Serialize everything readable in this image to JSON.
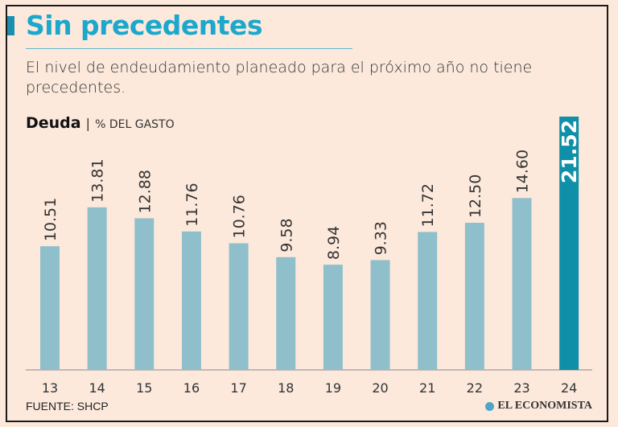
{
  "title": "Sin precedentes",
  "subtitle": "El nivel de endeudamiento planeado para el próximo año no tiene precedentes.",
  "unit_label": "Deuda",
  "unit_separator": "|",
  "unit_detail": "% DEL GASTO",
  "source": "FUENTE: SHCP",
  "logo_text": "EL ECONOMISTA",
  "colors": {
    "bar": "#8fbfca",
    "highlight": "#0f8fa8",
    "title": "#1ba8cc",
    "background": "#fce9dc"
  },
  "chart_data": {
    "type": "bar",
    "title": "Deuda",
    "ylabel": "% DEL GASTO",
    "categories": [
      "13",
      "14",
      "15",
      "16",
      "17",
      "18",
      "19",
      "20",
      "21",
      "22",
      "23",
      "24"
    ],
    "values": [
      10.51,
      13.81,
      12.88,
      11.76,
      10.76,
      9.58,
      8.94,
      9.33,
      11.72,
      12.5,
      14.6,
      21.52
    ],
    "value_labels": [
      "10.51",
      "13.81",
      "12.88",
      "11.76",
      "10.76",
      "9.58",
      "8.94",
      "9.33",
      "11.72",
      "12.50",
      "14.60",
      "21.52"
    ],
    "highlighted_category": "24",
    "ylim": [
      0,
      21.52
    ],
    "grid": false,
    "legend": "none"
  }
}
